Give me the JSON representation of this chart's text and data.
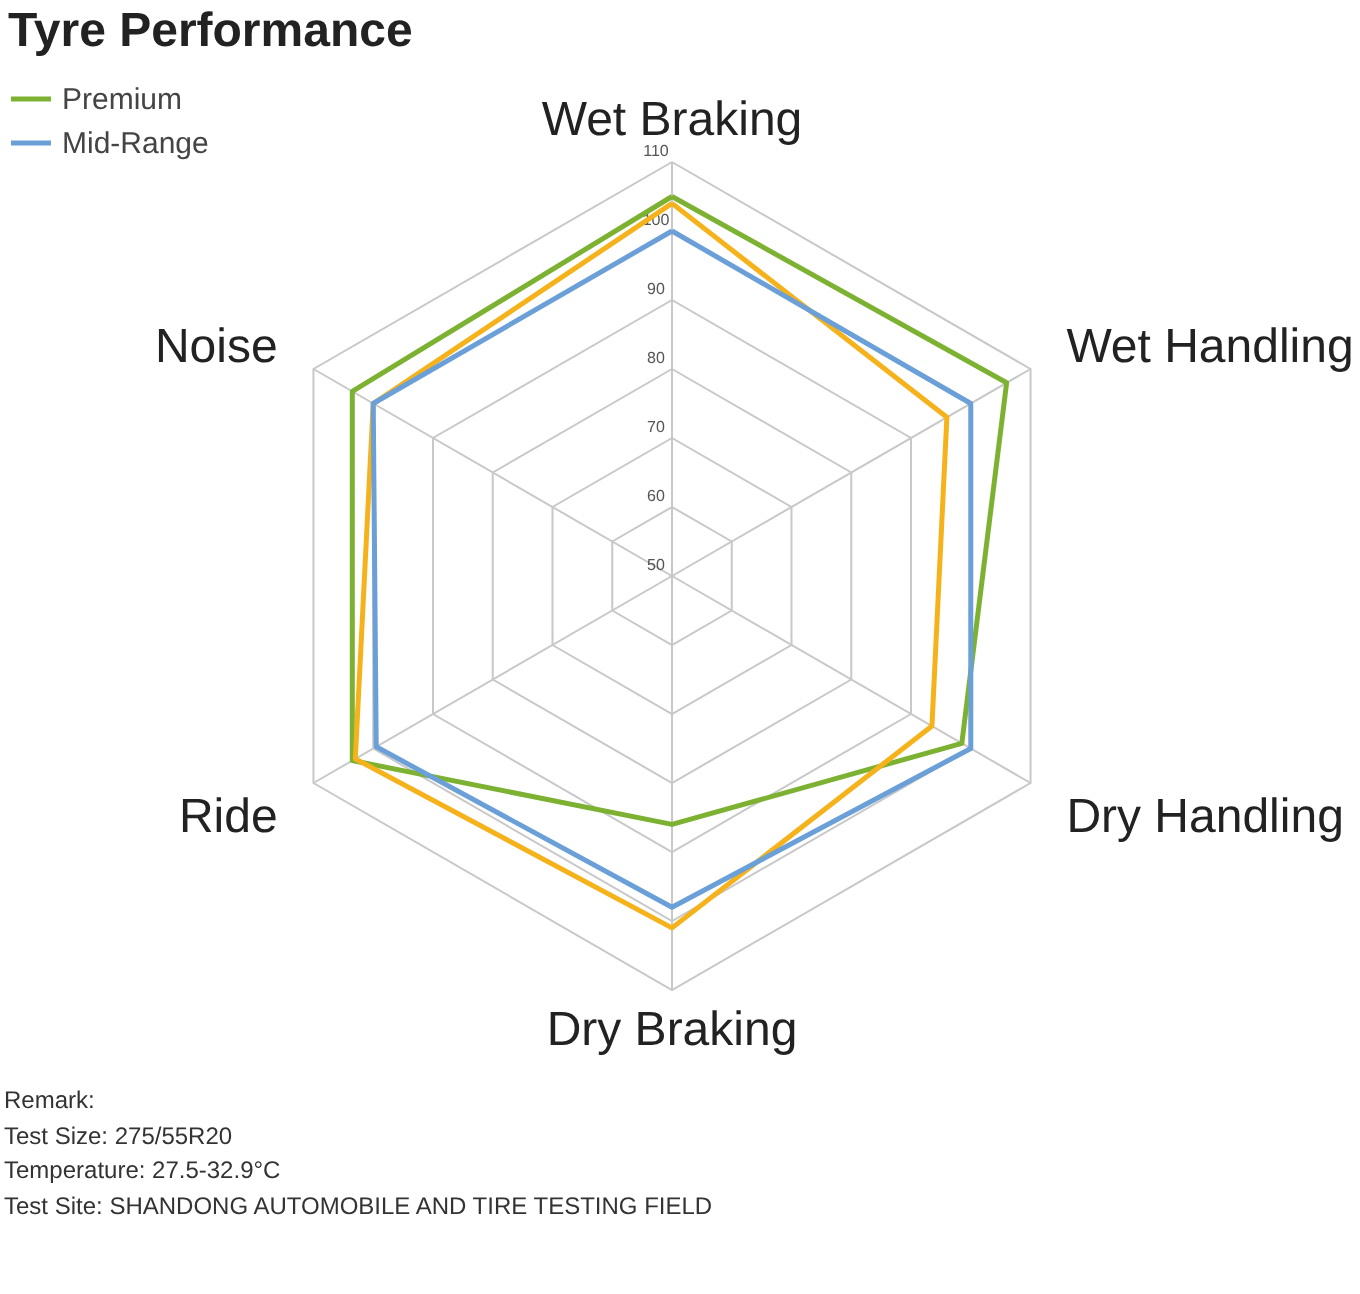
{
  "chart_data": {
    "type": "radar",
    "title": "Tyre Performance",
    "categories": [
      "Wet Braking",
      "Wet Handling",
      "Dry Handling",
      "Dry Braking",
      "Ride",
      "Noise"
    ],
    "series": [
      {
        "name": "Premium",
        "color": "#7cb132",
        "values": [
          105,
          106,
          98.5,
          86,
          103.5,
          103.5
        ]
      },
      {
        "color": "#f5b21b",
        "values": [
          104,
          96,
          93.5,
          101,
          103,
          100
        ]
      },
      {
        "name": "Mid-Range",
        "color": "#6a9fd8",
        "values": [
          100,
          100,
          100,
          98,
          99.5,
          100
        ]
      }
    ],
    "ylim": [
      50,
      110
    ],
    "yticks": [
      50,
      60,
      70,
      80,
      90,
      100,
      110
    ],
    "grid": true,
    "legend": "top left",
    "annotations": [
      "Remark:",
      "Test Size: 275/55R20",
      "Temperature: 27.5-32.9°C",
      "Test Site: SHANDONG AUTOMOBILE AND TIRE TESTING FIELD"
    ]
  }
}
